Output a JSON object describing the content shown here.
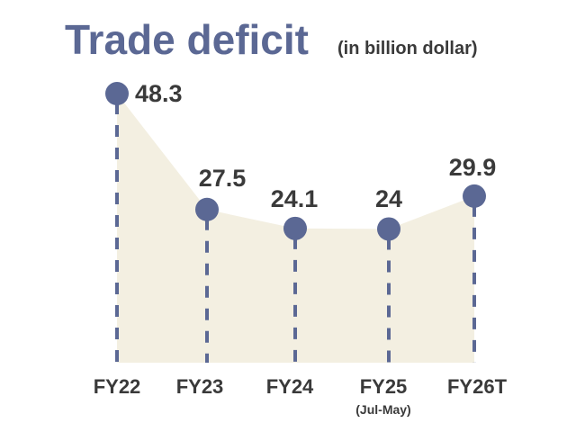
{
  "chart_data": {
    "type": "area",
    "title": "Trade deficit",
    "subtitle": "(in billion dollar)",
    "categories": [
      "FY22",
      "FY23",
      "FY24",
      "FY25",
      "FY26T"
    ],
    "category_notes": [
      "",
      "",
      "",
      "(Jul-May)",
      ""
    ],
    "values": [
      48.3,
      27.5,
      24.1,
      24,
      29.9
    ],
    "data_labels": [
      "48.3",
      "27.5",
      "24.1",
      "24",
      "29.9"
    ],
    "ylim": [
      0,
      52
    ],
    "grid": false,
    "legend": "none"
  },
  "colors": {
    "title": "#5b6894",
    "marker": "#5b6894",
    "fill": "#f3efe1",
    "text": "#3a3a3a"
  }
}
